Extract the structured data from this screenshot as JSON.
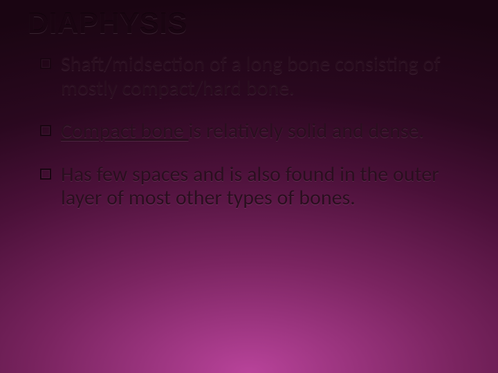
{
  "slide": {
    "title": "DIAPHYSIS",
    "title_fontsize": 42,
    "title_color": "#1a0512",
    "bullets": [
      {
        "text_before": "",
        "underlined": "",
        "text_after": "Shaft/midsection of a long bone consisting of mostly compact/hard bone."
      },
      {
        "text_before": "",
        "underlined": "Compact bone ",
        "text_after": "is relatively solid and dense."
      },
      {
        "text_before": "",
        "underlined": "",
        "text_after": "Has few spaces and is also found in the outer layer of most other types of bones."
      }
    ],
    "bullet_fontsize": 30,
    "bullet_color": "#2a0e1f",
    "bullet_marker_color": "#1a0512",
    "background_gradient": {
      "inner": "#b8439a",
      "mid1": "#7a2460",
      "mid2": "#4a1038",
      "mid3": "#2a081f",
      "outer": "#1a0512"
    }
  }
}
